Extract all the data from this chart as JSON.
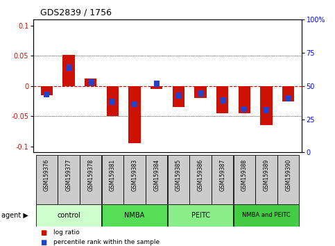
{
  "title": "GDS2839 / 1756",
  "samples": [
    "GSM159376",
    "GSM159377",
    "GSM159378",
    "GSM159381",
    "GSM159383",
    "GSM159384",
    "GSM159385",
    "GSM159386",
    "GSM159387",
    "GSM159388",
    "GSM159389",
    "GSM159390"
  ],
  "log_ratio": [
    -0.015,
    0.052,
    0.012,
    -0.05,
    -0.095,
    -0.005,
    -0.035,
    -0.02,
    -0.045,
    -0.045,
    -0.065,
    -0.025
  ],
  "percentile": [
    43,
    65,
    53,
    37,
    35,
    52,
    42,
    44,
    38,
    31,
    30,
    40
  ],
  "groups": [
    {
      "label": "control",
      "start": 0,
      "end": 3,
      "color": "#ccffcc"
    },
    {
      "label": "NMBA",
      "start": 3,
      "end": 6,
      "color": "#55dd55"
    },
    {
      "label": "PEITC",
      "start": 6,
      "end": 9,
      "color": "#88ee88"
    },
    {
      "label": "NMBA and PEITC",
      "start": 9,
      "end": 12,
      "color": "#44cc44"
    }
  ],
  "bar_width": 0.55,
  "blue_bar_width": 0.25,
  "red_color": "#cc1100",
  "blue_color": "#2244cc",
  "ylim": [
    -0.11,
    0.11
  ],
  "yticks": [
    -0.1,
    -0.05,
    0.0,
    0.05,
    0.1
  ],
  "right_yticks": [
    0,
    25,
    50,
    75,
    100
  ],
  "right_ylim": [
    0,
    100
  ],
  "background_label": "#cccccc",
  "agent_label": "agent",
  "legend_log": "log ratio",
  "legend_pct": "percentile rank within the sample"
}
